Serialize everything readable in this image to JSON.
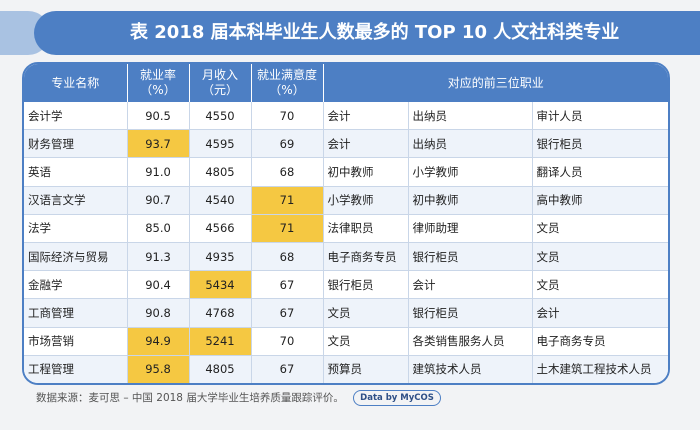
{
  "title": "表  2018 届本科毕业生人数最多的 TOP 10 人文社科类专业",
  "headers": {
    "major": "专业名称",
    "employment_rate": [
      "就业率",
      "（%）"
    ],
    "income": [
      "月收入",
      "（元）"
    ],
    "satisfaction": [
      "就业满意度",
      "（%）"
    ],
    "jobs": "对应的前三位职业"
  },
  "rows": [
    {
      "major": "会计学",
      "rate": "90.5",
      "income": "4550",
      "sat": "70",
      "jobs": [
        "会计",
        "出纳员",
        "审计人员"
      ]
    },
    {
      "major": "财务管理",
      "rate": "93.7",
      "income": "4595",
      "sat": "69",
      "jobs": [
        "会计",
        "出纳员",
        "银行柜员"
      ]
    },
    {
      "major": "英语",
      "rate": "91.0",
      "income": "4805",
      "sat": "68",
      "jobs": [
        "初中教师",
        "小学教师",
        "翻译人员"
      ]
    },
    {
      "major": "汉语言文学",
      "rate": "90.7",
      "income": "4540",
      "sat": "71",
      "jobs": [
        "小学教师",
        "初中教师",
        "高中教师"
      ]
    },
    {
      "major": "法学",
      "rate": "85.0",
      "income": "4566",
      "sat": "71",
      "jobs": [
        "法律职员",
        "律师助理",
        "文员"
      ]
    },
    {
      "major": "国际经济与贸易",
      "rate": "91.3",
      "income": "4935",
      "sat": "68",
      "jobs": [
        "电子商务专员",
        "银行柜员",
        "文员"
      ]
    },
    {
      "major": "金融学",
      "rate": "90.4",
      "income": "5434",
      "sat": "67",
      "jobs": [
        "银行柜员",
        "会计",
        "文员"
      ]
    },
    {
      "major": "工商管理",
      "rate": "90.8",
      "income": "4768",
      "sat": "67",
      "jobs": [
        "文员",
        "银行柜员",
        "会计"
      ]
    },
    {
      "major": "市场营销",
      "rate": "94.9",
      "income": "5241",
      "sat": "70",
      "jobs": [
        "文员",
        "各类销售服务人员",
        "电子商务专员"
      ]
    },
    {
      "major": "工程管理",
      "rate": "95.8",
      "income": "4805",
      "sat": "67",
      "jobs": [
        "预算员",
        "建筑技术人员",
        "土木建筑工程技术人员"
      ]
    }
  ],
  "highlights": [
    {
      "row": 1,
      "col": "rate"
    },
    {
      "row": 3,
      "col": "sat"
    },
    {
      "row": 4,
      "col": "sat"
    },
    {
      "row": 6,
      "col": "income"
    },
    {
      "row": 8,
      "col": "rate"
    },
    {
      "row": 8,
      "col": "income"
    },
    {
      "row": 9,
      "col": "rate"
    }
  ],
  "footer": {
    "source": "数据来源：麦可思 – 中国 2018 届大学毕业生培养质量跟踪评价。",
    "badge": "Data by MyCOS"
  },
  "colors": {
    "header_blue": "#4d7fc4",
    "highlight_yellow": "#f5c842",
    "stripe": "#eef3fa"
  }
}
